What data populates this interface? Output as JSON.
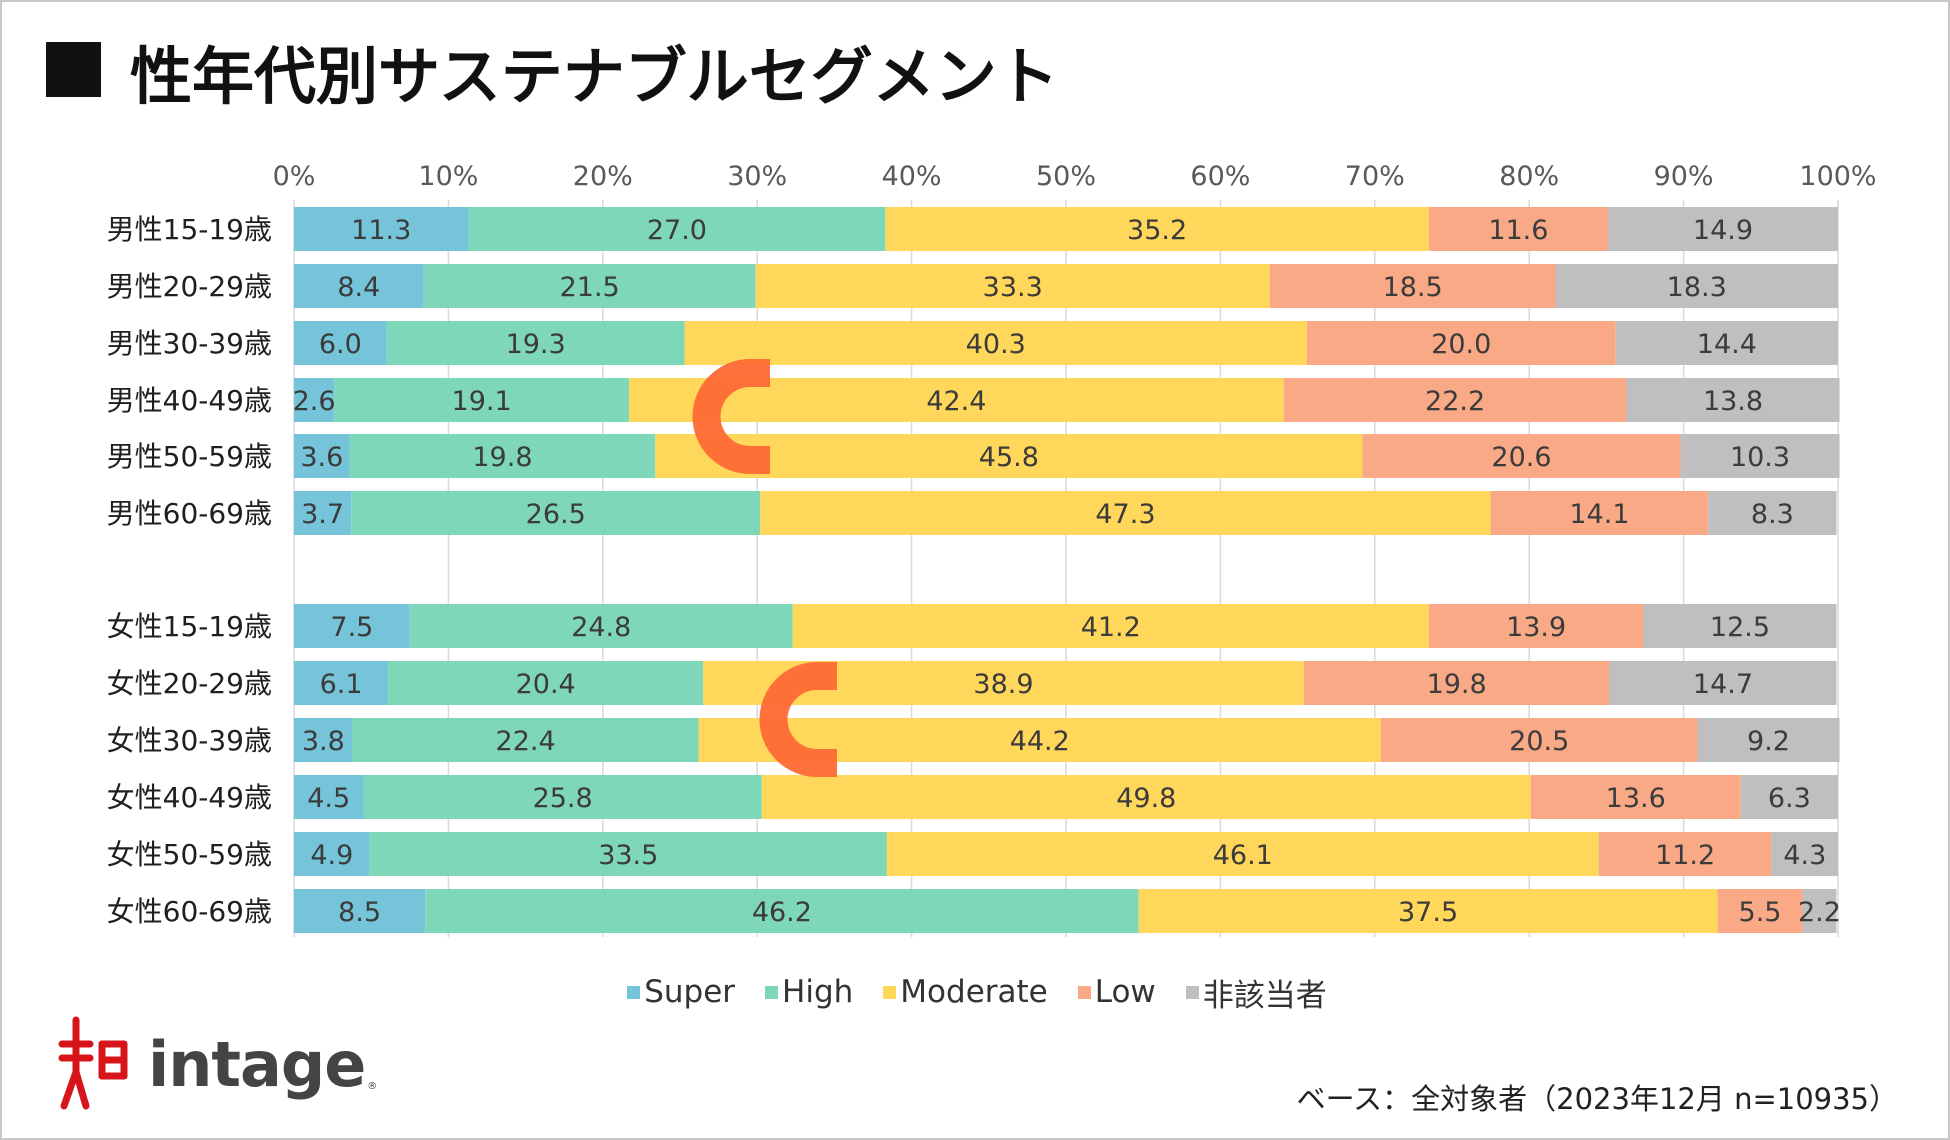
{
  "title": "性年代別サステナブルセグメント",
  "chart_data": {
    "type": "bar",
    "orientation": "horizontal",
    "stacked": "percent",
    "title": "性年代別サステナブルセグメント",
    "x_ticks": [
      "0%",
      "10%",
      "20%",
      "30%",
      "40%",
      "50%",
      "60%",
      "70%",
      "80%",
      "90%",
      "100%"
    ],
    "xlim": [
      0,
      100
    ],
    "categories": [
      "男性15-19歳",
      "男性20-29歳",
      "男性30-39歳",
      "男性40-49歳",
      "男性50-59歳",
      "男性60-69歳",
      "女性15-19歳",
      "女性20-29歳",
      "女性30-39歳",
      "女性40-49歳",
      "女性50-59歳",
      "女性60-69歳"
    ],
    "series": [
      {
        "name": "Super",
        "color": "#75c4d9",
        "values": [
          11.3,
          8.4,
          6.0,
          2.6,
          3.6,
          3.7,
          7.5,
          6.1,
          3.8,
          4.5,
          4.9,
          8.5
        ]
      },
      {
        "name": "High",
        "color": "#7fd7b9",
        "values": [
          27.0,
          21.5,
          19.3,
          19.1,
          19.8,
          26.5,
          24.8,
          20.4,
          22.4,
          25.8,
          33.5,
          46.2
        ]
      },
      {
        "name": "Moderate",
        "color": "#ffd75a",
        "values": [
          35.2,
          33.3,
          40.3,
          42.4,
          45.8,
          47.3,
          41.2,
          38.9,
          44.2,
          49.8,
          46.1,
          37.5
        ]
      },
      {
        "name": "Low",
        "color": "#f9a986",
        "values": [
          11.6,
          18.5,
          20.0,
          22.2,
          20.6,
          14.1,
          13.9,
          19.8,
          20.5,
          13.6,
          11.2,
          5.5
        ]
      },
      {
        "name": "非該当者",
        "color": "#bfbfbf",
        "values": [
          14.9,
          18.3,
          14.4,
          13.8,
          10.3,
          8.3,
          12.5,
          14.7,
          9.2,
          6.3,
          4.3,
          2.2
        ]
      }
    ],
    "legend_position": "bottom",
    "grid": true,
    "annotations": [
      {
        "type": "bracket",
        "color": "#ff6a35",
        "rows": [
          "男性40-49歳",
          "男性50-59歳"
        ]
      },
      {
        "type": "bracket",
        "color": "#ff6a35",
        "rows": [
          "女性20-29歳",
          "女性30-39歳"
        ]
      }
    ]
  },
  "legend": [
    {
      "label": "Super",
      "color": "#75c4d9"
    },
    {
      "label": "High",
      "color": "#7fd7b9"
    },
    {
      "label": "Moderate",
      "color": "#ffd75a"
    },
    {
      "label": "Low",
      "color": "#f9a986"
    },
    {
      "label": "非該当者",
      "color": "#bfbfbf"
    }
  ],
  "logo": {
    "text": "intage",
    "reg": "®"
  },
  "base_note": "ベース：全対象者（2023年12月 n=10935）"
}
